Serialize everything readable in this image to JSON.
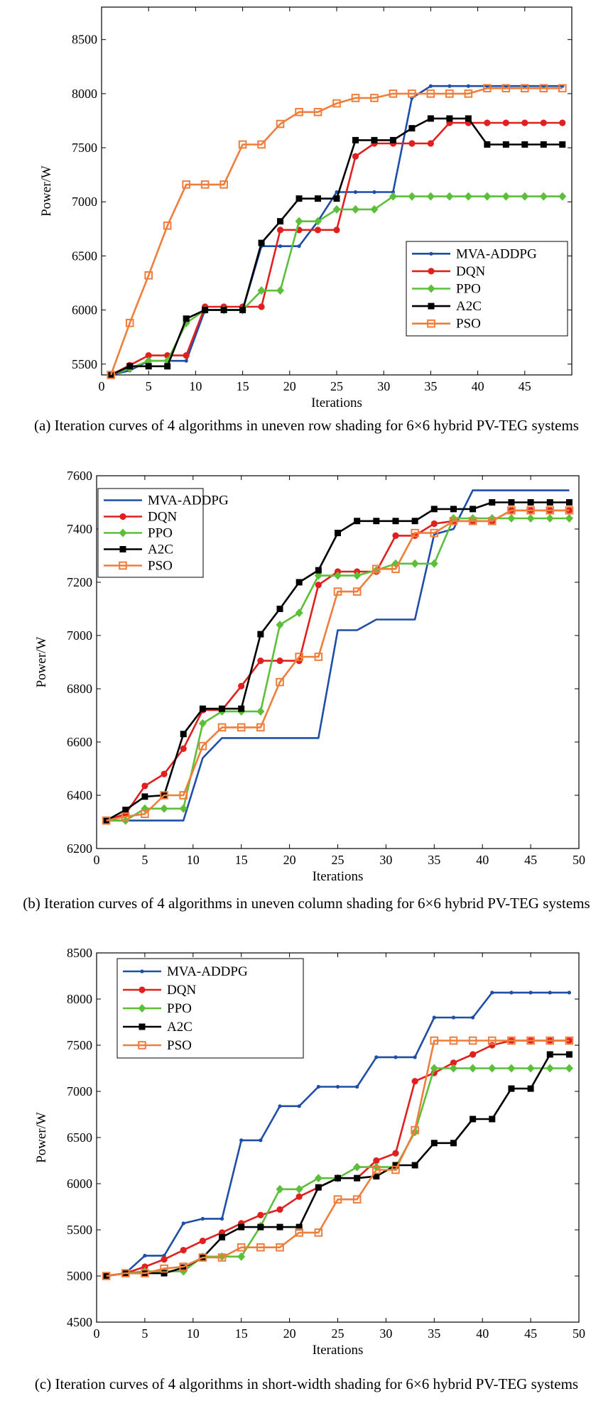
{
  "chart_data": [
    {
      "type": "line",
      "caption": "(a)  Iteration curves of 4 algorithms in uneven row shading for 6×6 hybrid PV-TEG systems",
      "xlabel": "Iterations",
      "ylabel": "Power/W",
      "xlim": [
        0,
        50
      ],
      "ylim": [
        5400,
        8800
      ],
      "xticks": [
        0,
        5,
        10,
        15,
        20,
        25,
        30,
        35,
        40,
        45
      ],
      "yticks": [
        5500,
        6000,
        6500,
        7000,
        7500,
        8000,
        8500
      ],
      "legend_position": "bottom-right",
      "x": [
        1,
        3,
        5,
        7,
        9,
        11,
        13,
        15,
        17,
        19,
        21,
        23,
        25,
        27,
        29,
        31,
        33,
        35,
        37,
        39,
        41,
        43,
        45,
        47,
        49
      ],
      "series": [
        {
          "name": "MVA-ADDPG",
          "color": "#1f4ea6",
          "marker": "dot",
          "values": [
            5400,
            5440,
            5530,
            5530,
            5530,
            6000,
            6000,
            6000,
            6590,
            6590,
            6590,
            6820,
            7090,
            7090,
            7090,
            7090,
            7960,
            8070,
            8070,
            8070,
            8070,
            8070,
            8070,
            8070,
            8070
          ]
        },
        {
          "name": "DQN",
          "color": "#e0201e",
          "marker": "circle",
          "values": [
            5400,
            5490,
            5580,
            5580,
            5580,
            6030,
            6030,
            6030,
            6030,
            6740,
            6740,
            6740,
            6740,
            7420,
            7540,
            7540,
            7540,
            7540,
            7730,
            7730,
            7730,
            7730,
            7730,
            7730,
            7730
          ]
        },
        {
          "name": "PPO",
          "color": "#5cbf3a",
          "marker": "diamond",
          "values": [
            5400,
            5460,
            5530,
            5530,
            5880,
            6000,
            6000,
            6000,
            6180,
            6180,
            6820,
            6820,
            6930,
            6930,
            6930,
            7050,
            7050,
            7050,
            7050,
            7050,
            7050,
            7050,
            7050,
            7050,
            7050
          ]
        },
        {
          "name": "A2C",
          "color": "#000000",
          "marker": "square",
          "values": [
            5400,
            5480,
            5480,
            5480,
            5920,
            6000,
            6000,
            6000,
            6620,
            6820,
            7030,
            7030,
            7030,
            7570,
            7570,
            7570,
            7680,
            7770,
            7770,
            7770,
            7530,
            7530,
            7530,
            7530,
            7530
          ]
        },
        {
          "name": "PSO",
          "color": "#ef7d3c",
          "marker": "open-square",
          "values": [
            5400,
            5880,
            6320,
            6780,
            7160,
            7160,
            7160,
            7530,
            7530,
            7720,
            7830,
            7830,
            7910,
            7960,
            7960,
            8000,
            8000,
            8000,
            8000,
            8000,
            8050,
            8050,
            8050,
            8050,
            8050
          ]
        }
      ]
    },
    {
      "type": "line",
      "caption": "(b)  Iteration curves of 4 algorithms in uneven column shading for 6×6 hybrid PV-TEG systems",
      "xlabel": "Iterations",
      "ylabel": "Power/W",
      "xlim": [
        0,
        50
      ],
      "ylim": [
        6200,
        7600
      ],
      "xticks": [
        0,
        5,
        10,
        15,
        20,
        25,
        30,
        35,
        40,
        45,
        50
      ],
      "yticks": [
        6200,
        6400,
        6600,
        6800,
        7000,
        7200,
        7400,
        7600
      ],
      "legend_position": "top-left",
      "x": [
        1,
        3,
        5,
        7,
        9,
        11,
        13,
        15,
        17,
        19,
        21,
        23,
        25,
        27,
        29,
        31,
        33,
        35,
        37,
        39,
        41,
        43,
        45,
        47,
        49
      ],
      "series": [
        {
          "name": "MVA-ADDPG",
          "color": "#1f4ea6",
          "marker": "none",
          "values": [
            6305,
            6305,
            6305,
            6305,
            6305,
            6540,
            6615,
            6615,
            6615,
            6615,
            6615,
            6615,
            7020,
            7020,
            7060,
            7060,
            7060,
            7380,
            7400,
            7545,
            7545,
            7545,
            7545,
            7545,
            7545
          ]
        },
        {
          "name": "DQN",
          "color": "#e0201e",
          "marker": "circle",
          "values": [
            6305,
            6330,
            6435,
            6480,
            6575,
            6720,
            6720,
            6810,
            6905,
            6905,
            6905,
            7190,
            7240,
            7240,
            7240,
            7375,
            7375,
            7420,
            7430,
            7430,
            7430,
            7470,
            7470,
            7470,
            7470
          ]
        },
        {
          "name": "PPO",
          "color": "#5cbf3a",
          "marker": "diamond",
          "values": [
            6305,
            6305,
            6350,
            6350,
            6350,
            6670,
            6715,
            6715,
            6715,
            7040,
            7085,
            7225,
            7225,
            7225,
            7245,
            7270,
            7270,
            7270,
            7440,
            7440,
            7440,
            7440,
            7440,
            7440,
            7440
          ]
        },
        {
          "name": "A2C",
          "color": "#000000",
          "marker": "square",
          "values": [
            6305,
            6345,
            6395,
            6400,
            6630,
            6725,
            6725,
            6725,
            7005,
            7100,
            7200,
            7245,
            7385,
            7430,
            7430,
            7430,
            7430,
            7475,
            7475,
            7475,
            7500,
            7500,
            7500,
            7500,
            7500
          ]
        },
        {
          "name": "PSO",
          "color": "#ef7d3c",
          "marker": "open-square",
          "values": [
            6305,
            6320,
            6330,
            6400,
            6400,
            6585,
            6655,
            6655,
            6655,
            6825,
            6920,
            6920,
            7165,
            7165,
            7250,
            7250,
            7385,
            7385,
            7430,
            7430,
            7430,
            7470,
            7470,
            7470,
            7470
          ]
        }
      ]
    },
    {
      "type": "line",
      "caption": "(c)  Iteration curves of 4 algorithms in short-width shading for 6×6 hybrid PV-TEG systems",
      "xlabel": "Iterations",
      "ylabel": "Power/W",
      "xlim": [
        0,
        50
      ],
      "ylim": [
        4500,
        8500
      ],
      "xticks": [
        0,
        5,
        10,
        15,
        20,
        25,
        30,
        35,
        40,
        45,
        50
      ],
      "yticks": [
        4500,
        5000,
        5500,
        6000,
        6500,
        7000,
        7500,
        8000,
        8500
      ],
      "legend_position": "top-left",
      "x": [
        1,
        3,
        5,
        7,
        9,
        11,
        13,
        15,
        17,
        19,
        21,
        23,
        25,
        27,
        29,
        31,
        33,
        35,
        37,
        39,
        41,
        43,
        45,
        47,
        49
      ],
      "series": [
        {
          "name": "MVA-ADDPG",
          "color": "#1f4ea6",
          "marker": "dot",
          "values": [
            5000,
            5030,
            5220,
            5220,
            5570,
            5620,
            5620,
            6470,
            6470,
            6840,
            6840,
            7050,
            7050,
            7050,
            7370,
            7370,
            7370,
            7800,
            7800,
            7800,
            8070,
            8070,
            8070,
            8070,
            8070
          ]
        },
        {
          "name": "DQN",
          "color": "#e0201e",
          "marker": "circle",
          "values": [
            5000,
            5030,
            5100,
            5180,
            5280,
            5380,
            5470,
            5570,
            5660,
            5720,
            5860,
            5960,
            6060,
            6060,
            6250,
            6330,
            7110,
            7200,
            7310,
            7400,
            7500,
            7550,
            7550,
            7550,
            7550
          ]
        },
        {
          "name": "PPO",
          "color": "#5cbf3a",
          "marker": "diamond",
          "values": [
            5000,
            5030,
            5050,
            5050,
            5050,
            5210,
            5210,
            5210,
            5540,
            5940,
            5940,
            6060,
            6060,
            6180,
            6180,
            6180,
            6560,
            7250,
            7250,
            7250,
            7250,
            7250,
            7250,
            7250,
            7250
          ]
        },
        {
          "name": "A2C",
          "color": "#000000",
          "marker": "square",
          "values": [
            5000,
            5030,
            5030,
            5030,
            5090,
            5200,
            5420,
            5530,
            5530,
            5530,
            5530,
            5960,
            6060,
            6060,
            6080,
            6200,
            6200,
            6440,
            6440,
            6700,
            6700,
            7030,
            7030,
            7400,
            7400
          ]
        },
        {
          "name": "PSO",
          "color": "#ef7d3c",
          "marker": "open-square",
          "values": [
            5000,
            5030,
            5030,
            5080,
            5100,
            5200,
            5200,
            5310,
            5310,
            5310,
            5470,
            5470,
            5830,
            5830,
            6150,
            6150,
            6580,
            7550,
            7550,
            7550,
            7550,
            7550,
            7550,
            7550,
            7550
          ]
        }
      ]
    }
  ]
}
